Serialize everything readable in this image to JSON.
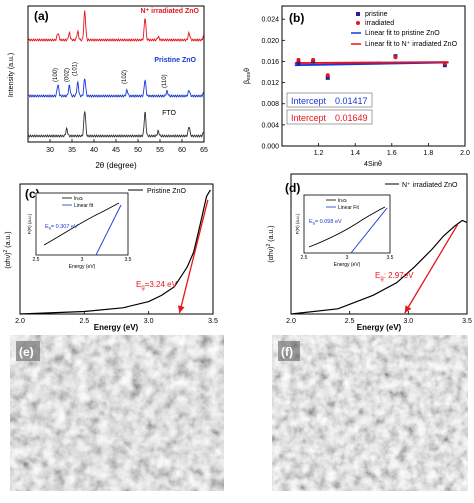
{
  "chart_data": [
    {
      "type": "line",
      "panel_label": "(a)",
      "xlabel": "2θ (degree)",
      "ylabel": "Intensity (a.u.)",
      "xlim": [
        25,
        65
      ],
      "xticks": [
        30,
        35,
        40,
        45,
        50,
        55,
        60,
        65
      ],
      "series": [
        {
          "name": "N⁺ irradiated ZnO",
          "color": "#e8141c",
          "offset": 2.0,
          "peaks": [
            [
              31.8,
              0.22
            ],
            [
              34.4,
              0.22
            ],
            [
              36.3,
              0.26
            ],
            [
              37.9,
              0.9
            ],
            [
              51.6,
              0.7
            ],
            [
              54.6,
              0.1
            ],
            [
              61.6,
              0.22
            ],
            [
              65.0,
              0.15
            ]
          ]
        },
        {
          "name": "Pristine ZnO",
          "color": "#1838d8",
          "offset": 1.05,
          "peaks": [
            [
              31.8,
              0.35
            ],
            [
              34.4,
              0.33
            ],
            [
              36.3,
              0.42
            ],
            [
              37.9,
              0.55
            ],
            [
              47.5,
              0.18
            ],
            [
              51.6,
              0.5
            ],
            [
              56.6,
              0.15
            ],
            [
              61.6,
              0.18
            ],
            [
              65.0,
              0.12
            ]
          ]
        },
        {
          "name": "FTO",
          "color": "#333333",
          "offset": 0.0,
          "peaks": [
            [
              33.8,
              0.22
            ],
            [
              37.9,
              0.8
            ],
            [
              51.6,
              0.75
            ],
            [
              54.6,
              0.15
            ],
            [
              61.6,
              0.3
            ],
            [
              65.0,
              0.15
            ]
          ]
        }
      ],
      "annotations": [
        {
          "text": "(100)",
          "x": 31.8
        },
        {
          "text": "(002)",
          "x": 34.4
        },
        {
          "text": "(101)",
          "x": 36.3
        },
        {
          "text": "(102)",
          "x": 47.5
        },
        {
          "text": "(110)",
          "x": 56.6
        }
      ]
    },
    {
      "type": "scatter",
      "panel_label": "(b)",
      "xlabel": "4Sinθ",
      "ylabel": "β<sub>eos</sub>θ",
      "xlim": [
        1.0,
        2.0
      ],
      "ylim": [
        0.0,
        0.0265
      ],
      "xticks": [
        1.2,
        1.4,
        1.6,
        1.8,
        2.0
      ],
      "yticks": [
        0.0,
        0.004,
        0.008,
        0.012,
        0.016,
        0.02,
        0.024
      ],
      "series": [
        {
          "name": "pristine",
          "color": "#20209a",
          "marker": "square",
          "x": [
            1.09,
            1.17,
            1.25,
            1.62,
            1.89
          ],
          "y": [
            0.0157,
            0.016,
            0.0129,
            0.017,
            0.0153
          ]
        },
        {
          "name": "irradiated",
          "color": "#e8141c",
          "marker": "circle",
          "x": [
            1.09,
            1.17,
            1.25,
            1.62,
            1.89
          ],
          "y": [
            0.0163,
            0.0163,
            0.0134,
            0.0168,
            0.0156
          ]
        }
      ],
      "fits": [
        {
          "name": "Linear fit to pristine ZnO",
          "color": "#1838d8",
          "x": [
            1.07,
            1.91
          ],
          "y": [
            0.0153,
            0.0158
          ]
        },
        {
          "name": "Linear fit to N⁺ irradiated ZnO",
          "color": "#e8141c",
          "x": [
            1.07,
            1.91
          ],
          "y": [
            0.0157,
            0.0159
          ]
        }
      ],
      "intercepts": [
        {
          "label": "Intercept",
          "value": "0.01417",
          "color": "#1838d8"
        },
        {
          "label": "Intercept",
          "value": "0.01649",
          "color": "#e8141c"
        }
      ]
    },
    {
      "type": "line",
      "panel_label": "(c)",
      "xlabel": "Energy (eV)",
      "ylabel": "(αhν)² (a.u.)",
      "xlim": [
        2.0,
        3.5
      ],
      "xticks": [
        2.0,
        2.5,
        3.0,
        3.5
      ],
      "legend": "Pristine ZnO",
      "curve_color": "#000000",
      "curve": [
        [
          2.0,
          0.0
        ],
        [
          2.5,
          0.02
        ],
        [
          2.8,
          0.05
        ],
        [
          3.0,
          0.1
        ],
        [
          3.1,
          0.15
        ],
        [
          3.2,
          0.22
        ],
        [
          3.3,
          0.38
        ],
        [
          3.35,
          0.5
        ],
        [
          3.4,
          0.72
        ],
        [
          3.45,
          0.95
        ],
        [
          3.48,
          1.0
        ]
      ],
      "fit_line": [
        [
          3.24,
          0.0
        ],
        [
          3.46,
          0.92
        ]
      ],
      "band_gap_label": "E<sub>g</sub>=3.24 eV",
      "band_gap_value": 3.24,
      "inset": {
        "xlabel": "Energy (eV)",
        "ylabel": "F(R) (a.u.)",
        "xlim": [
          2.5,
          3.5
        ],
        "xticks": [
          2.5,
          3.0,
          3.5
        ],
        "legend": [
          "ln₍α₎",
          "Linear fit"
        ],
        "gap_label": "E<sub>g</sub>= 0.307 eV"
      }
    },
    {
      "type": "line",
      "panel_label": "(d)",
      "xlabel": "Energy (eV)",
      "ylabel": "(αhν)² (a.u.)",
      "xlim": [
        2.0,
        3.5
      ],
      "xticks": [
        2.0,
        2.5,
        3.0,
        3.5
      ],
      "legend": "N⁺ irradiated ZnO",
      "curve_color": "#000000",
      "curve": [
        [
          2.0,
          0.0
        ],
        [
          2.4,
          0.05
        ],
        [
          2.7,
          0.18
        ],
        [
          2.9,
          0.3
        ],
        [
          3.05,
          0.45
        ],
        [
          3.2,
          0.62
        ],
        [
          3.3,
          0.75
        ],
        [
          3.4,
          0.85
        ],
        [
          3.46,
          0.9
        ],
        [
          3.5,
          0.88
        ]
      ],
      "fit_line": [
        [
          2.97,
          0.0
        ],
        [
          3.42,
          0.86
        ]
      ],
      "band_gap_label": "E<sub>g</sub>: 2.97eV",
      "band_gap_value": 2.97,
      "inset": {
        "xlabel": "Energy (eV)",
        "ylabel": "F(R) (a.u.)",
        "xlim": [
          2.5,
          3.5
        ],
        "xticks": [
          2.5,
          3.0,
          3.5
        ],
        "legend": [
          "ln₍α₎",
          "Linear Fit"
        ],
        "gap_label": "E<sub>g</sub>= 0.098 eV"
      }
    }
  ],
  "sem_images": [
    {
      "panel_label": "(e)",
      "tone": "#7a7a7a"
    },
    {
      "panel_label": "(f)",
      "tone": "#808080"
    }
  ]
}
